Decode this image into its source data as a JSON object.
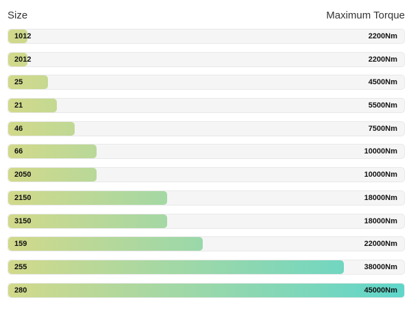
{
  "header": {
    "left_label": "Size",
    "right_label": "Maximum Torque"
  },
  "colors": {
    "gradient_start": "#d2d98a",
    "gradient_end": "#5fd6cb",
    "track": "#f5f5f5"
  },
  "chart_data": {
    "type": "bar",
    "orientation": "horizontal",
    "categories": [
      "1012",
      "2012",
      "25",
      "21",
      "46",
      "66",
      "2050",
      "2150",
      "3150",
      "159",
      "255",
      "280"
    ],
    "values": [
      2200,
      2200,
      4500,
      5500,
      7500,
      10000,
      10000,
      18000,
      18000,
      22000,
      38000,
      45000
    ],
    "value_labels": [
      "2200Nm",
      "2200Nm",
      "4500Nm",
      "5500Nm",
      "7500Nm",
      "10000Nm",
      "10000Nm",
      "18000Nm",
      "18000Nm",
      "22000Nm",
      "38000Nm",
      "45000Nm"
    ],
    "xlim": [
      0,
      45000
    ],
    "grid": false,
    "legend": "none"
  }
}
